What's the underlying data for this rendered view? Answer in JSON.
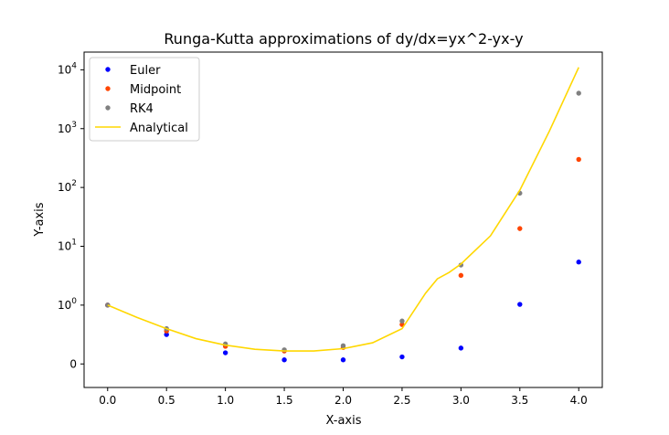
{
  "chart_data": {
    "type": "scatter",
    "title": "Runga-Kutta approximations of dy/dx=yx^2-yx-y",
    "xlabel": "X-axis",
    "ylabel": "Y-axis",
    "xlim": [
      -0.2,
      4.2
    ],
    "ylim": [
      -0.4,
      20000
    ],
    "yscale": "symlog",
    "x_ticks": [
      0.0,
      0.5,
      1.0,
      1.5,
      2.0,
      2.5,
      3.0,
      3.5,
      4.0
    ],
    "x_tick_labels": [
      "0.0",
      "0.5",
      "1.0",
      "1.5",
      "2.0",
      "2.5",
      "3.0",
      "3.5",
      "4.0"
    ],
    "y_ticks": [
      {
        "value": 0,
        "base": "0",
        "exp": ""
      },
      {
        "value": 1,
        "base": "10",
        "exp": "0"
      },
      {
        "value": 10,
        "base": "10",
        "exp": "1"
      },
      {
        "value": 100,
        "base": "10",
        "exp": "2"
      },
      {
        "value": 1000,
        "base": "10",
        "exp": "3"
      },
      {
        "value": 10000,
        "base": "10",
        "exp": "4"
      }
    ],
    "legend_position": "top-left",
    "series": [
      {
        "name": "Euler",
        "kind": "points",
        "color": "#0000ff",
        "x": [
          0.0,
          0.5,
          1.0,
          1.5,
          2.0,
          2.5,
          3.0,
          3.5,
          4.0
        ],
        "y": [
          1.0,
          0.5,
          0.19,
          0.07,
          0.07,
          0.12,
          0.27,
          1.03,
          5.4
        ]
      },
      {
        "name": "Midpoint",
        "kind": "points",
        "color": "#ff4500",
        "x": [
          0.0,
          0.5,
          1.0,
          1.5,
          2.0,
          2.5,
          3.0,
          3.5,
          4.0
        ],
        "y": [
          1.0,
          0.56,
          0.3,
          0.22,
          0.28,
          0.67,
          3.2,
          20,
          300
        ]
      },
      {
        "name": "RK4",
        "kind": "points",
        "color": "#808080",
        "x": [
          0.0,
          0.5,
          1.0,
          1.5,
          2.0,
          2.5,
          3.0,
          3.5,
          4.0
        ],
        "y": [
          1.0,
          0.6,
          0.34,
          0.24,
          0.31,
          0.73,
          4.8,
          80,
          4000
        ]
      },
      {
        "name": "Analytical",
        "kind": "line",
        "color": "#ffd700",
        "x": [
          0.0,
          0.25,
          0.5,
          0.75,
          1.0,
          1.25,
          1.5,
          1.75,
          2.0,
          2.25,
          2.5,
          2.7,
          2.8,
          2.9,
          3.0,
          3.25,
          3.5,
          3.75,
          4.0
        ],
        "y": [
          1.0,
          0.79,
          0.6,
          0.43,
          0.32,
          0.25,
          0.22,
          0.22,
          0.26,
          0.36,
          0.6,
          1.6,
          2.8,
          3.6,
          5.0,
          15,
          90,
          900,
          11000
        ]
      }
    ]
  }
}
